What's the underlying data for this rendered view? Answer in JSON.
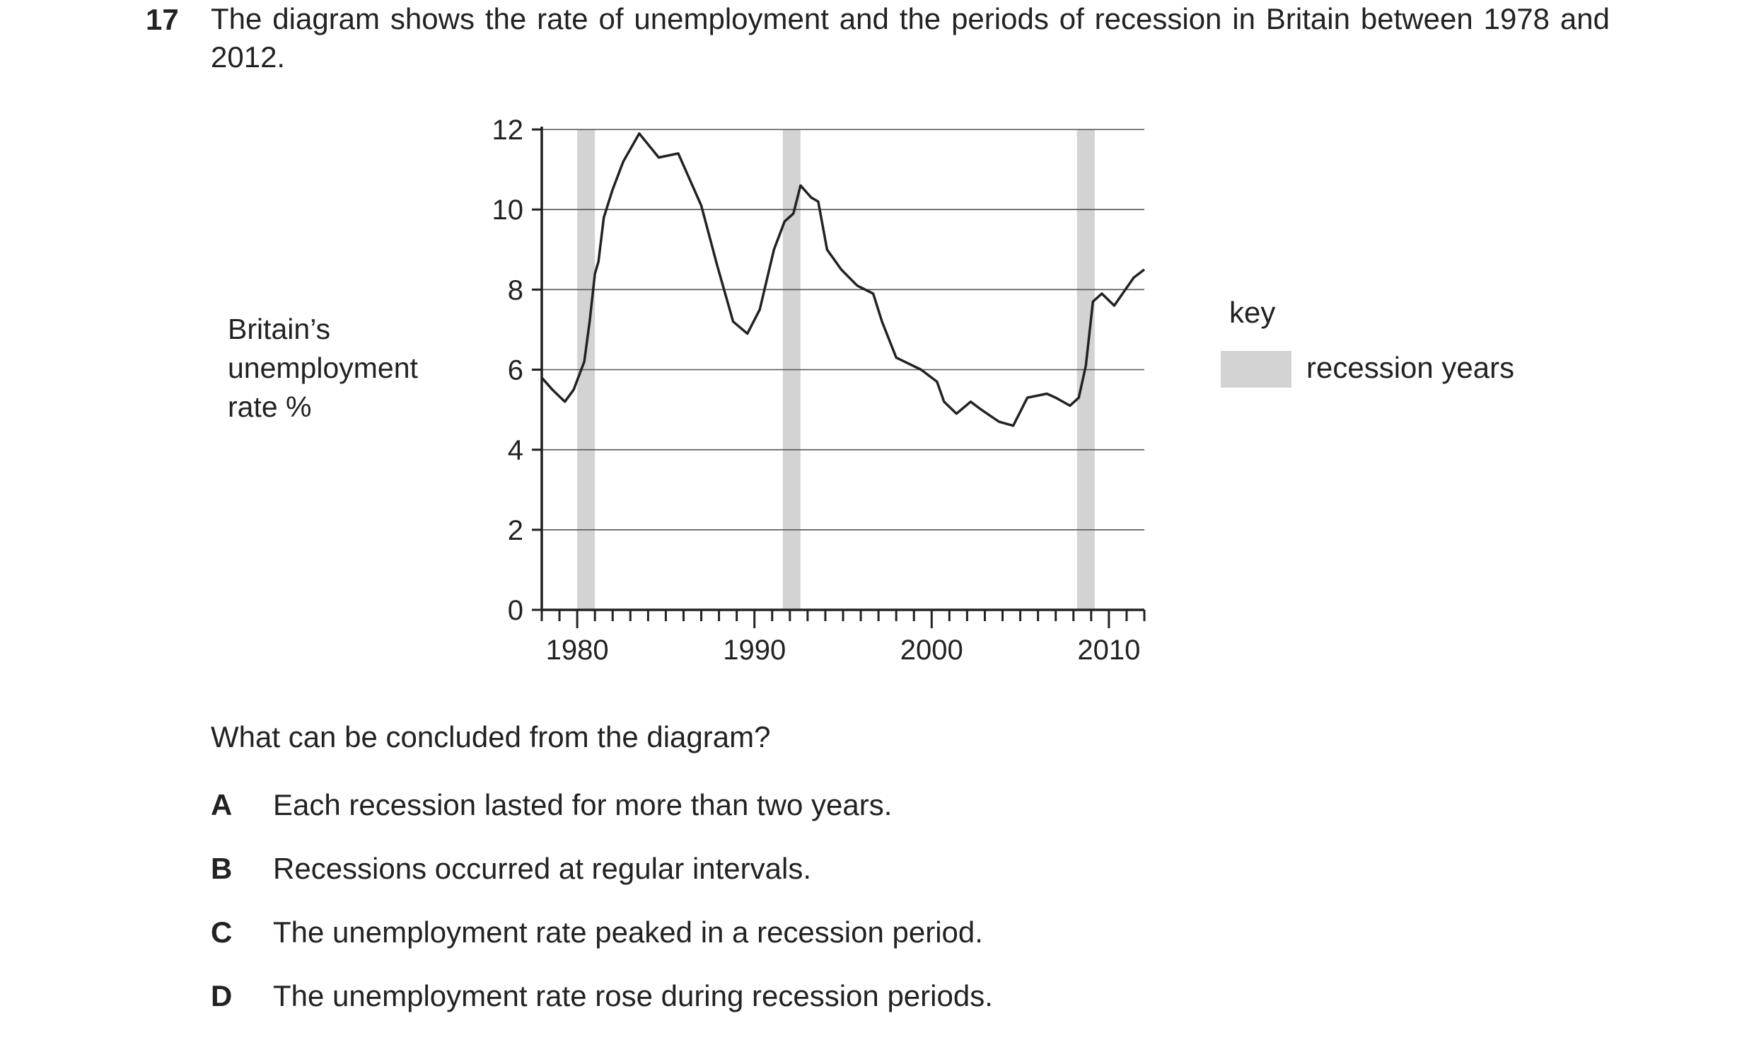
{
  "question": {
    "number": "17",
    "stem": "The diagram shows the rate of unemployment and the periods of recession in Britain between 1978 and 2012.",
    "prompt": "What can be concluded from the diagram?",
    "options": [
      {
        "letter": "A",
        "text": "Each recession lasted for more than two years."
      },
      {
        "letter": "B",
        "text": "Recessions occurred at regular intervals."
      },
      {
        "letter": "C",
        "text": "The unemployment rate peaked in a recession period."
      },
      {
        "letter": "D",
        "text": "The unemployment rate rose during recession periods."
      }
    ]
  },
  "chart_data": {
    "type": "line",
    "title": "",
    "ylabel_lines": [
      "Britain’s",
      "unemployment",
      "rate %"
    ],
    "xlabel": "",
    "xlim": [
      1978,
      2012
    ],
    "ylim": [
      0,
      12
    ],
    "yticks": [
      0,
      2,
      4,
      6,
      8,
      10,
      12
    ],
    "xtick_labels": [
      1980,
      1990,
      2000,
      2010
    ],
    "minor_xticks_every_year": true,
    "grid": "horizontal",
    "key_title": "key",
    "recession_label": "recession years",
    "recession_color": "#d3d3d3",
    "line_color": "#222222",
    "recessions": [
      [
        1980.0,
        1981.0
      ],
      [
        1991.6,
        1992.6
      ],
      [
        2008.2,
        2009.2
      ]
    ],
    "series": [
      {
        "x": [
          1978.0,
          1978.6,
          1979.3,
          1979.8,
          1980.4,
          1980.7,
          1981.0,
          1981.2,
          1981.5,
          1982.0,
          1982.6,
          1983.5,
          1984.6,
          1985.7,
          1987.0,
          1987.9,
          1988.8,
          1989.6,
          1990.3,
          1991.1,
          1991.7,
          1992.2,
          1992.6,
          1993.2,
          1993.6,
          1994.1,
          1994.9,
          1995.8,
          1996.7,
          1997.2,
          1998.0,
          1999.4,
          2000.3,
          2000.7,
          2001.4,
          2002.2,
          2002.8,
          2003.8,
          2004.6,
          2005.4,
          2006.5,
          2007.0,
          2007.8,
          2008.3,
          2008.7,
          2009.1,
          2009.6,
          2010.3,
          2011.4,
          2012.0
        ],
        "y": [
          5.8,
          5.5,
          5.2,
          5.5,
          6.2,
          7.2,
          8.4,
          8.7,
          9.8,
          10.5,
          11.2,
          11.9,
          11.3,
          11.4,
          10.1,
          8.6,
          7.2,
          6.9,
          7.5,
          9.0,
          9.7,
          9.9,
          10.6,
          10.3,
          10.2,
          9.0,
          8.5,
          8.1,
          7.9,
          7.2,
          6.3,
          6.0,
          5.7,
          5.2,
          4.9,
          5.2,
          5.0,
          4.7,
          4.6,
          5.3,
          5.4,
          5.3,
          5.1,
          5.3,
          6.1,
          7.7,
          7.9,
          7.6,
          8.3,
          8.5
        ]
      }
    ]
  }
}
